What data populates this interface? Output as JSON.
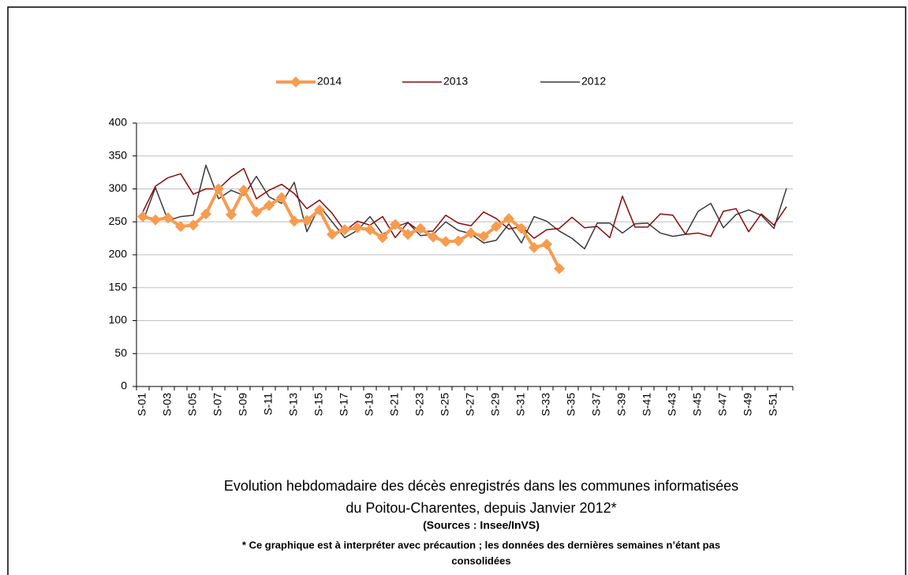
{
  "chart_data": {
    "type": "line",
    "title": "Evolution hebdomadaire des décès enregistrés dans les communes informatisées",
    "subtitle": "du Poitou-Charentes, depuis Janvier  2012*",
    "source": "(Sources : Insee/InVS)",
    "note": "* Ce graphique est à interpréter avec précaution ; les données des dernières semaines n’étant pas",
    "note_2": "consolidées",
    "categories": [
      "S-01",
      null,
      "S-03",
      null,
      "S-05",
      null,
      "S-07",
      null,
      "S-09",
      null,
      "S-11",
      null,
      "S-13",
      null,
      "S-15",
      null,
      "S-17",
      null,
      "S-19",
      null,
      "S-21",
      null,
      "S-23",
      null,
      "S-25",
      null,
      "S-27",
      null,
      "S-29",
      null,
      "S-31",
      null,
      "S-33",
      null,
      "S-35",
      null,
      "S-37",
      null,
      "S-39",
      null,
      "S-41",
      null,
      "S-43",
      null,
      "S-45",
      null,
      "S-47",
      null,
      "S-49",
      null,
      "S-51",
      null
    ],
    "series": [
      {
        "name": "2014",
        "color": "#f79b4f",
        "values": [
          258,
          253,
          256,
          243,
          245,
          262,
          300,
          261,
          298,
          265,
          275,
          287,
          251,
          252,
          268,
          231,
          238,
          241,
          238,
          226,
          246,
          231,
          240,
          227,
          220,
          221,
          233,
          228,
          243,
          255,
          240,
          211,
          216,
          179,
          null,
          null,
          null,
          null,
          null,
          null,
          null,
          null,
          null,
          null,
          null,
          null,
          null,
          null,
          null,
          null,
          null,
          null
        ]
      },
      {
        "name": "2013",
        "color": "#8b0a0a",
        "values": [
          265,
          304,
          317,
          323,
          292,
          300,
          300,
          318,
          331,
          285,
          298,
          307,
          293,
          270,
          283,
          263,
          236,
          251,
          245,
          258,
          226,
          249,
          235,
          236,
          260,
          248,
          244,
          265,
          255,
          239,
          243,
          225,
          238,
          240,
          257,
          241,
          243,
          226,
          289,
          242,
          242,
          262,
          260,
          231,
          233,
          228,
          266,
          270,
          235,
          262,
          245,
          273
        ]
      },
      {
        "name": "2012",
        "color": "#3a3a3a",
        "values": [
          250,
          302,
          252,
          258,
          260,
          336,
          285,
          298,
          290,
          319,
          288,
          278,
          310,
          235,
          274,
          250,
          226,
          237,
          258,
          231,
          242,
          249,
          229,
          231,
          250,
          237,
          232,
          218,
          222,
          247,
          218,
          258,
          251,
          236,
          225,
          209,
          248,
          248,
          233,
          247,
          248,
          233,
          228,
          231,
          266,
          278,
          241,
          261,
          268,
          260,
          240,
          301
        ]
      }
    ],
    "ylim": [
      0,
      400
    ],
    "yticks": [
      0,
      50,
      100,
      150,
      200,
      250,
      300,
      350,
      400
    ],
    "grid": true,
    "legend": "top"
  }
}
